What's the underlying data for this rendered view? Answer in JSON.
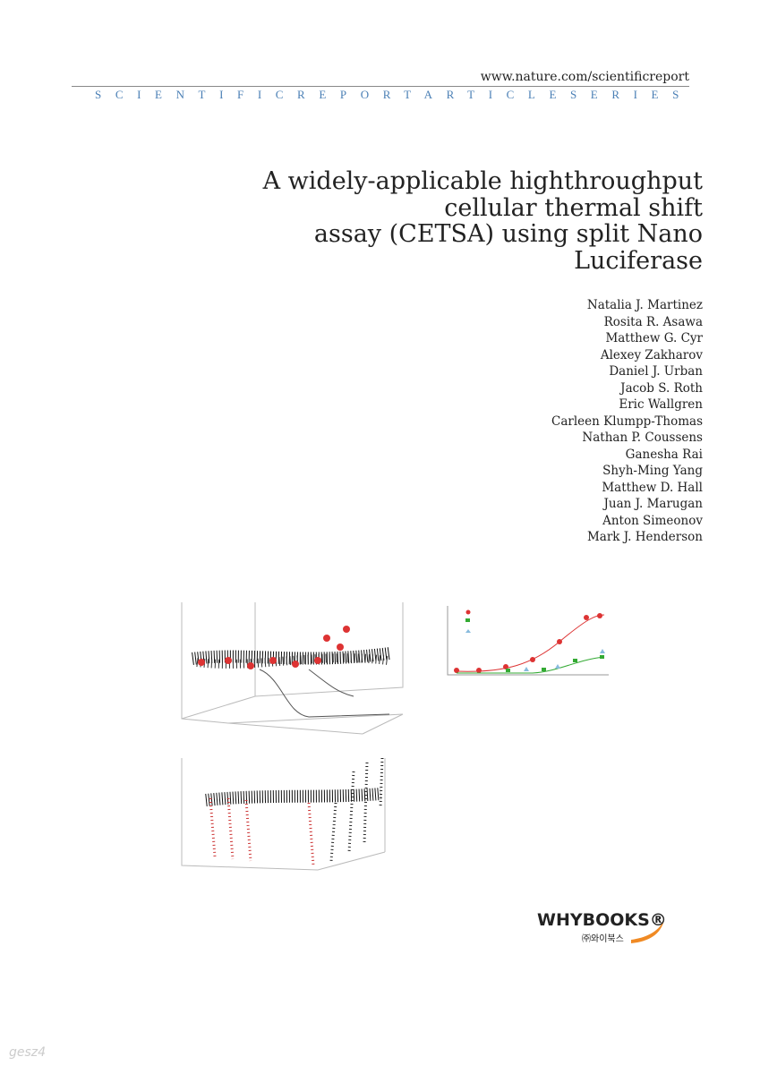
{
  "header": {
    "url": "www.nature.com/scientificreport",
    "series": "SCIENTIFICREPORTARTICLESERIES"
  },
  "title_lines": [
    "A widely-applicable highthroughput",
    "cellular thermal shift",
    "assay (CETSA) using split Nano",
    "Luciferase"
  ],
  "authors": [
    "Natalia J. Martinez",
    "Rosita R. Asawa",
    "Matthew G. Cyr",
    "Alexey Zakharov",
    "Daniel J. Urban",
    "Jacob S. Roth",
    "Eric Wallgren",
    "Carleen Klumpp-Thomas",
    "Nathan P. Coussens",
    "Ganesha Rai",
    "Shyh-Ming Yang",
    "Matthew D. Hall",
    "Juan J. Marugan",
    "Anton Simeonov",
    "Mark J. Henderson"
  ],
  "publisher": {
    "name": "WHYBOOKS®",
    "korean": "㈜와이북스"
  },
  "watermark": "gesz4"
}
